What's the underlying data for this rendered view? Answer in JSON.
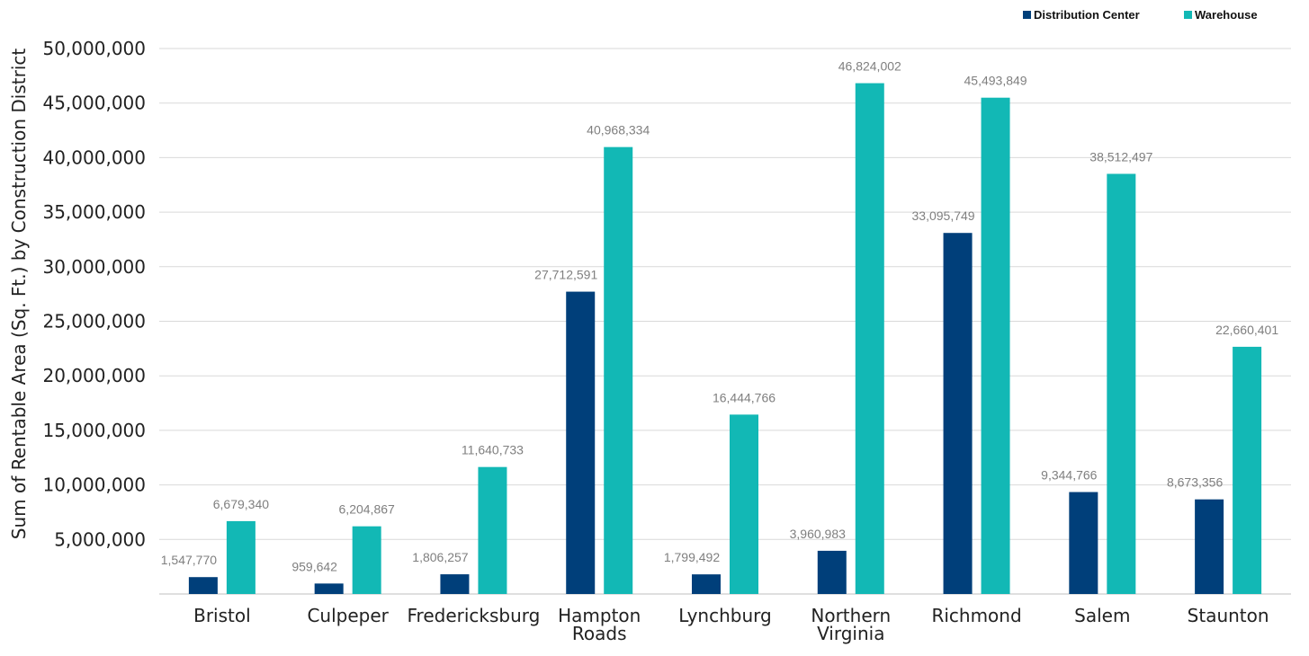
{
  "chart_data": {
    "type": "bar",
    "title": "",
    "xlabel": "",
    "ylabel": "Sum of Rentable Area (Sq. Ft.) by Construction District",
    "ylim": [
      0,
      50000000
    ],
    "yticks": [
      "5,000,000",
      "10,000,000",
      "15,000,000",
      "20,000,000",
      "25,000,000",
      "30,000,000",
      "35,000,000",
      "40,000,000",
      "45,000,000",
      "50,000,000"
    ],
    "categories": [
      [
        "Bristol"
      ],
      [
        "Culpeper"
      ],
      [
        "Fredericksburg"
      ],
      [
        "Hampton",
        "Roads"
      ],
      [
        "Lynchburg"
      ],
      [
        "Northern",
        "Virginia"
      ],
      [
        "Richmond"
      ],
      [
        "Salem"
      ],
      [
        "Staunton"
      ]
    ],
    "series": [
      {
        "name": "Distribution Center",
        "color": "#003f7a",
        "values": [
          1547770,
          959642,
          1806257,
          27712591,
          1799492,
          3960983,
          33095749,
          9344766,
          8673356
        ],
        "labels": [
          "1,547,770",
          "959,642",
          "1,806,257",
          "27,712,591",
          "1,799,492",
          "3,960,983",
          "33,095,749",
          "9,344,766",
          "8,673,356"
        ]
      },
      {
        "name": "Warehouse",
        "color": "#12b8b5",
        "values": [
          6679340,
          6204867,
          11640733,
          40968334,
          16444766,
          46824002,
          45493849,
          38512497,
          22660401
        ],
        "labels": [
          "6,679,340",
          "6,204,867",
          "11,640,733",
          "40,968,334",
          "16,444,766",
          "46,824,002",
          "45,493,849",
          "38,512,497",
          "22,660,401"
        ]
      }
    ],
    "legend_position": "top-right",
    "grid": true
  }
}
